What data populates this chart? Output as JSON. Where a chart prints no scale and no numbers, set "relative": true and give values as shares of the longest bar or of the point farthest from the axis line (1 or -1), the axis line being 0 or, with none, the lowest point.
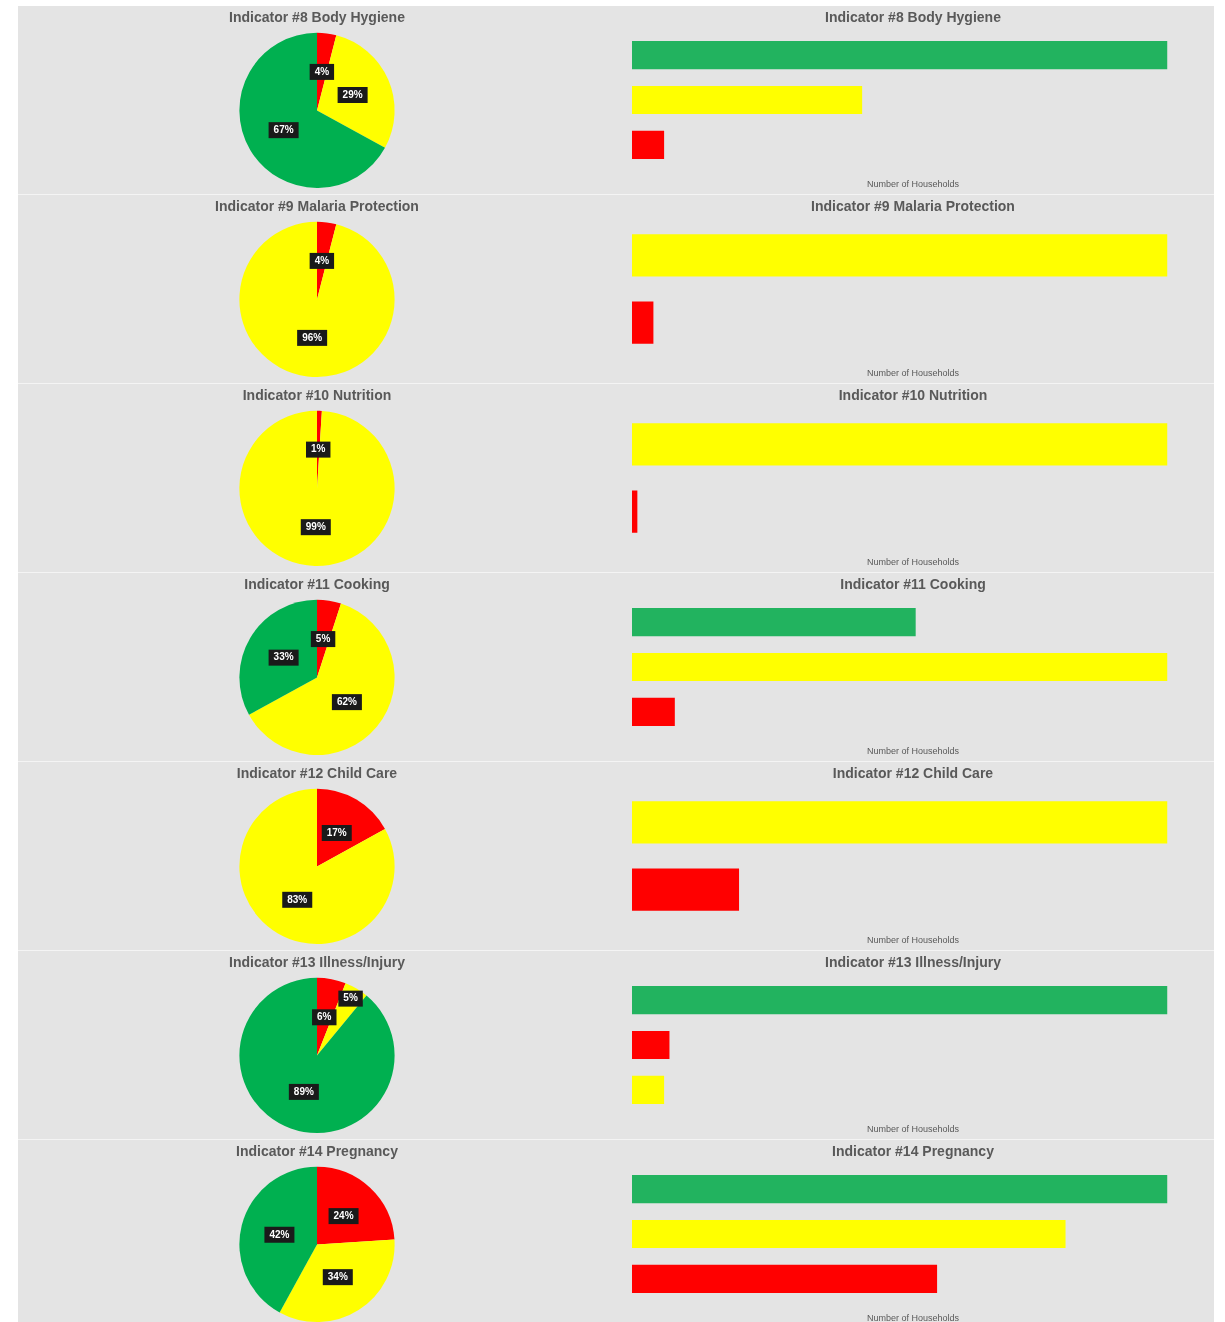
{
  "chart_data": [
    {
      "type": "pie",
      "title": "Indicator #8 Body Hygiene",
      "categories": [
        null,
        null,
        null
      ],
      "values": [
        4,
        29,
        67
      ],
      "colors": [
        "#ff0000",
        "#ffff00",
        "#00b050"
      ],
      "value_labels": [
        "4%",
        "29%",
        "67%"
      ]
    },
    {
      "type": "bar",
      "title": "Indicator #8 Body Hygiene",
      "orientation": "horizontal",
      "relative": true,
      "categories": [
        null,
        null,
        null
      ],
      "values": [
        1,
        0.43,
        0.06
      ],
      "colors": [
        "#22b35f",
        "#ffff00",
        "#ff0000"
      ],
      "xlabel": "Number of Households"
    },
    {
      "type": "pie",
      "title": "Indicator #9 Malaria Protection",
      "categories": [
        null,
        null
      ],
      "values": [
        4,
        96
      ],
      "colors": [
        "#ff0000",
        "#ffff00"
      ],
      "value_labels": [
        "4%",
        "96%"
      ]
    },
    {
      "type": "bar",
      "title": "Indicator #9 Malaria Protection",
      "orientation": "horizontal",
      "relative": true,
      "categories": [
        null,
        null
      ],
      "values": [
        1,
        0.04
      ],
      "colors": [
        "#ffff00",
        "#ff0000"
      ],
      "xlabel": "Number of Households"
    },
    {
      "type": "pie",
      "title": "Indicator #10 Nutrition",
      "categories": [
        null,
        null
      ],
      "values": [
        1,
        99
      ],
      "colors": [
        "#ff0000",
        "#ffff00"
      ],
      "value_labels": [
        "1%",
        "99%"
      ]
    },
    {
      "type": "bar",
      "title": "Indicator #10 Nutrition",
      "orientation": "horizontal",
      "relative": true,
      "categories": [
        null,
        null
      ],
      "values": [
        1,
        0.01
      ],
      "colors": [
        "#ffff00",
        "#ff0000"
      ],
      "xlabel": "Number of Households"
    },
    {
      "type": "pie",
      "title": "Indicator #11 Cooking",
      "categories": [
        null,
        null,
        null
      ],
      "values": [
        5,
        62,
        33
      ],
      "colors": [
        "#ff0000",
        "#ffff00",
        "#00b050"
      ],
      "value_labels": [
        "5%",
        "62%",
        "33%"
      ]
    },
    {
      "type": "bar",
      "title": "Indicator #11 Cooking",
      "orientation": "horizontal",
      "relative": true,
      "categories": [
        null,
        null,
        null
      ],
      "values": [
        0.53,
        1,
        0.08
      ],
      "colors": [
        "#22b35f",
        "#ffff00",
        "#ff0000"
      ],
      "xlabel": "Number of Households"
    },
    {
      "type": "pie",
      "title": "Indicator #12 Child Care",
      "categories": [
        null,
        null
      ],
      "values": [
        17,
        83
      ],
      "colors": [
        "#ff0000",
        "#ffff00"
      ],
      "value_labels": [
        "17%",
        "83%"
      ]
    },
    {
      "type": "bar",
      "title": "Indicator #12 Child Care",
      "orientation": "horizontal",
      "relative": true,
      "categories": [
        null,
        null
      ],
      "values": [
        1,
        0.2
      ],
      "colors": [
        "#ffff00",
        "#ff0000"
      ],
      "xlabel": "Number of Households"
    },
    {
      "type": "pie",
      "title": "Indicator #13 Illness/Injury",
      "categories": [
        null,
        null,
        null
      ],
      "values": [
        6,
        5,
        89
      ],
      "colors": [
        "#ff0000",
        "#ffff00",
        "#00b050"
      ],
      "value_labels": [
        "6%",
        "5%",
        "89%"
      ]
    },
    {
      "type": "bar",
      "title": "Indicator #13 Illness/Injury",
      "orientation": "horizontal",
      "relative": true,
      "categories": [
        null,
        null,
        null
      ],
      "values": [
        1,
        0.07,
        0.06
      ],
      "colors": [
        "#22b35f",
        "#ff0000",
        "#ffff00"
      ],
      "xlabel": "Number of Households"
    },
    {
      "type": "pie",
      "title": "Indicator #14 Pregnancy",
      "categories": [
        null,
        null,
        null
      ],
      "values": [
        24,
        34,
        42
      ],
      "colors": [
        "#ff0000",
        "#ffff00",
        "#00b050"
      ],
      "value_labels": [
        "24%",
        "34%",
        "42%"
      ]
    },
    {
      "type": "bar",
      "title": "Indicator #14 Pregnancy",
      "orientation": "horizontal",
      "relative": true,
      "categories": [
        null,
        null,
        null
      ],
      "values": [
        1,
        0.81,
        0.57
      ],
      "colors": [
        "#22b35f",
        "#ffff00",
        "#ff0000"
      ],
      "xlabel": "Number of Households"
    }
  ]
}
